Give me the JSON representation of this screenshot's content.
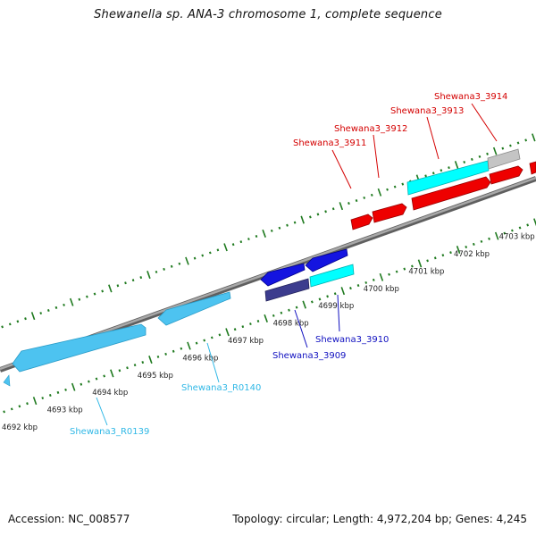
{
  "title": "Shewanella sp. ANA-3 chromosome 1, complete sequence",
  "footer": {
    "accession": "Accession: NC_008577",
    "summary": "Topology: circular; Length: 4,972,204 bp; Genes: 4,245"
  },
  "colors": {
    "backbone": "#8c8c8c",
    "tick": "#1f7a1f",
    "light_blue_gene": "#4dc3f0",
    "dark_blue_gene": "#1010d8",
    "navy_gene": "#3a3a8a",
    "cyan_gene": "#00ffff",
    "red_gene": "#ee0000",
    "grey_gene": "#bdbdbd",
    "label_red": "#d40000",
    "label_blue": "#1010c0",
    "label_lightblue": "#30b8e6"
  },
  "scale_labels": [
    "4692 kbp",
    "4693 kbp",
    "4694 kbp",
    "4695 kbp",
    "4696 kbp",
    "4697 kbp",
    "4698 kbp",
    "4699 kbp",
    "4700 kbp",
    "4701 kbp",
    "4702 kbp",
    "4703 kbp"
  ],
  "gene_labels": [
    {
      "text": "Shewana3_3914",
      "color": "label_red"
    },
    {
      "text": "Shewana3_3913",
      "color": "label_red"
    },
    {
      "text": "Shewana3_3912",
      "color": "label_red"
    },
    {
      "text": "Shewana3_3911",
      "color": "label_red"
    },
    {
      "text": "Shewana3_3910",
      "color": "label_blue"
    },
    {
      "text": "Shewana3_3909",
      "color": "label_blue"
    },
    {
      "text": "Shewana3_R0140",
      "color": "label_lightblue"
    },
    {
      "text": "Shewana3_R0139",
      "color": "label_lightblue"
    }
  ]
}
